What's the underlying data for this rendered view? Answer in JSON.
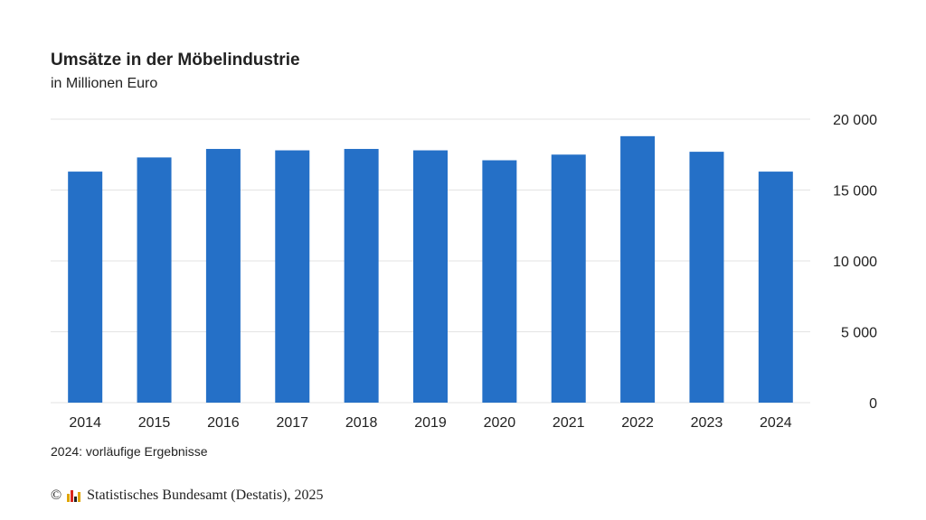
{
  "chart_data": {
    "type": "bar",
    "title": "Umsätze in der Möbelindustrie",
    "subtitle": "in Millionen Euro",
    "categories": [
      "2014",
      "2015",
      "2016",
      "2017",
      "2018",
      "2019",
      "2020",
      "2021",
      "2022",
      "2023",
      "2024"
    ],
    "values": [
      16300,
      17300,
      17900,
      17800,
      17900,
      17800,
      17100,
      17500,
      18800,
      17700,
      16300
    ],
    "ylim": [
      0,
      20000
    ],
    "y_ticks": [
      "0",
      "5 000",
      "10 000",
      "15 000",
      "20 000"
    ],
    "y_tick_values": [
      0,
      5000,
      10000,
      15000,
      20000
    ],
    "y_axis_side": "right",
    "grid": true,
    "bar_color": "#2570c7",
    "grid_color": "#e3e3e3",
    "footnote": "2024: vorläufige Ergebnisse",
    "source": "Statistisches Bundesamt (Destatis), 2025",
    "copyright_symbol": "©"
  },
  "logo_colors": [
    "#e0a400",
    "#d9261c",
    "#222222",
    "#e0a400"
  ]
}
